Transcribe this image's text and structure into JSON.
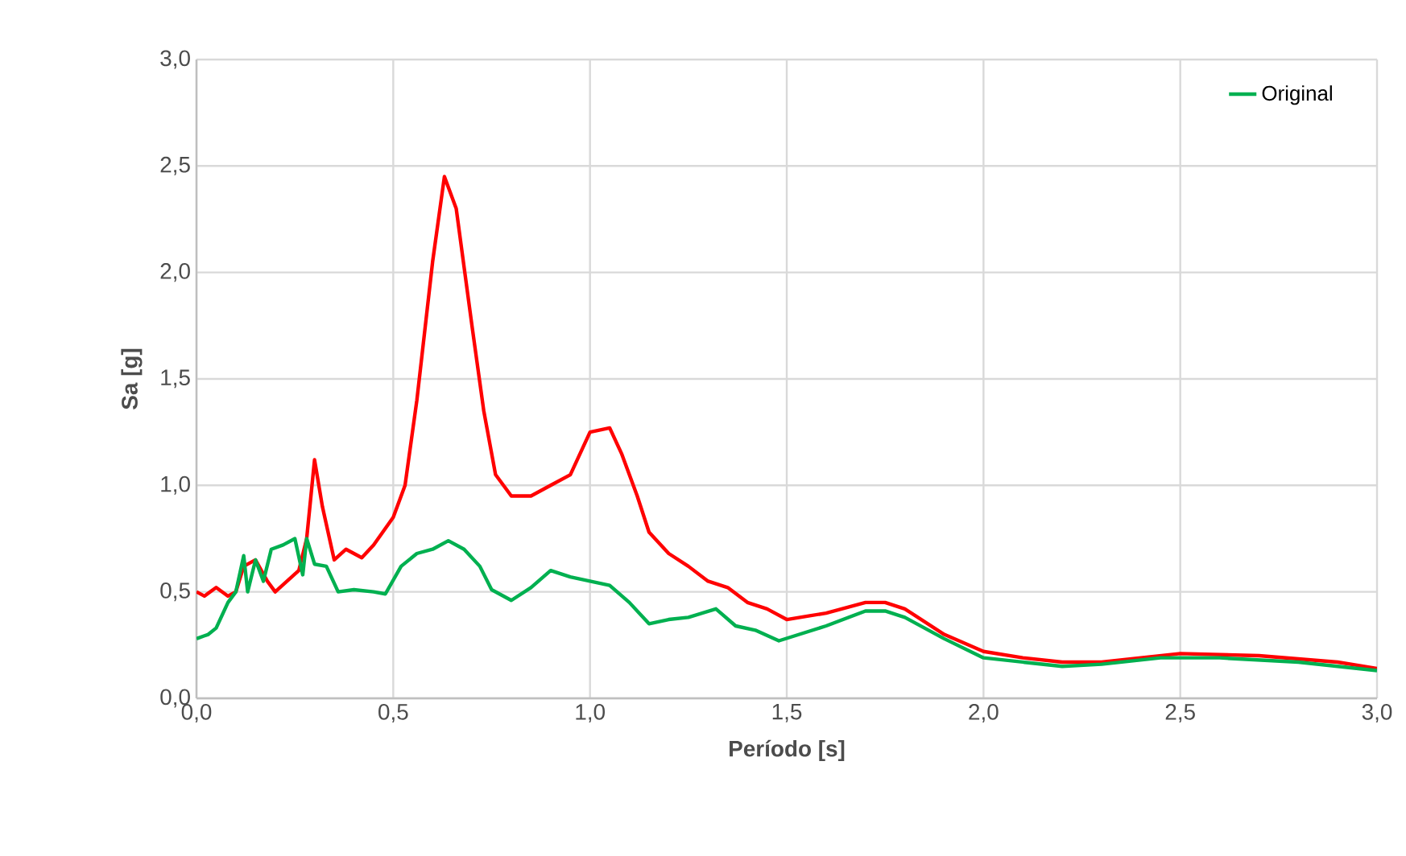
{
  "chart_data": {
    "type": "line",
    "xlabel": "Período [s]",
    "ylabel": "Sa [g]",
    "xlim": [
      0,
      3
    ],
    "ylim": [
      0,
      3
    ],
    "xticks": [
      {
        "value": 0,
        "label": "0,0"
      },
      {
        "value": 0.5,
        "label": "0,5"
      },
      {
        "value": 1,
        "label": "1,0"
      },
      {
        "value": 1.5,
        "label": "1,5"
      },
      {
        "value": 2,
        "label": "2,0"
      },
      {
        "value": 2.5,
        "label": "2,5"
      },
      {
        "value": 3,
        "label": "3,0"
      }
    ],
    "yticks": [
      {
        "value": 0,
        "label": "0,0"
      },
      {
        "value": 0.5,
        "label": "0,5"
      },
      {
        "value": 1,
        "label": "1,0"
      },
      {
        "value": 1.5,
        "label": "1,5"
      },
      {
        "value": 2,
        "label": "2,0"
      },
      {
        "value": 2.5,
        "label": "2,5"
      },
      {
        "value": 3,
        "label": "3,0"
      }
    ],
    "grid": true,
    "legend": "top right",
    "marker": "none",
    "line_style": "solid",
    "series": [
      {
        "color": "#ff0000",
        "x": [
          0.0,
          0.02,
          0.05,
          0.08,
          0.1,
          0.12,
          0.15,
          0.18,
          0.2,
          0.23,
          0.26,
          0.28,
          0.3,
          0.32,
          0.35,
          0.38,
          0.42,
          0.45,
          0.5,
          0.53,
          0.56,
          0.6,
          0.63,
          0.66,
          0.7,
          0.73,
          0.76,
          0.8,
          0.85,
          0.9,
          0.95,
          1.0,
          1.05,
          1.08,
          1.12,
          1.15,
          1.2,
          1.25,
          1.3,
          1.35,
          1.4,
          1.45,
          1.5,
          1.6,
          1.7,
          1.75,
          1.8,
          1.9,
          2.0,
          2.1,
          2.2,
          2.3,
          2.4,
          2.5,
          2.7,
          2.9,
          3.0
        ],
        "values": [
          0.5,
          0.48,
          0.52,
          0.48,
          0.5,
          0.62,
          0.65,
          0.55,
          0.5,
          0.55,
          0.6,
          0.75,
          1.12,
          0.9,
          0.65,
          0.7,
          0.66,
          0.72,
          0.85,
          1.0,
          1.4,
          2.05,
          2.45,
          2.3,
          1.75,
          1.35,
          1.05,
          0.95,
          0.95,
          1.0,
          1.05,
          1.25,
          1.27,
          1.15,
          0.95,
          0.78,
          0.68,
          0.62,
          0.55,
          0.52,
          0.45,
          0.42,
          0.37,
          0.4,
          0.45,
          0.45,
          0.42,
          0.3,
          0.22,
          0.19,
          0.17,
          0.17,
          0.19,
          0.21,
          0.2,
          0.17,
          0.14
        ]
      },
      {
        "name": "Original",
        "color": "#00b050",
        "x": [
          0.0,
          0.03,
          0.05,
          0.08,
          0.1,
          0.12,
          0.13,
          0.15,
          0.17,
          0.19,
          0.22,
          0.25,
          0.27,
          0.28,
          0.3,
          0.33,
          0.36,
          0.4,
          0.45,
          0.48,
          0.52,
          0.56,
          0.6,
          0.64,
          0.68,
          0.72,
          0.75,
          0.8,
          0.85,
          0.9,
          0.95,
          1.0,
          1.05,
          1.1,
          1.15,
          1.2,
          1.25,
          1.32,
          1.37,
          1.42,
          1.48,
          1.6,
          1.7,
          1.75,
          1.8,
          1.9,
          2.0,
          2.1,
          2.2,
          2.3,
          2.45,
          2.6,
          2.8,
          3.0
        ],
        "values": [
          0.28,
          0.3,
          0.33,
          0.45,
          0.5,
          0.67,
          0.5,
          0.65,
          0.55,
          0.7,
          0.72,
          0.75,
          0.58,
          0.75,
          0.63,
          0.62,
          0.5,
          0.51,
          0.5,
          0.49,
          0.62,
          0.68,
          0.7,
          0.74,
          0.7,
          0.62,
          0.51,
          0.46,
          0.52,
          0.6,
          0.57,
          0.55,
          0.53,
          0.45,
          0.35,
          0.37,
          0.38,
          0.42,
          0.34,
          0.32,
          0.27,
          0.34,
          0.41,
          0.41,
          0.38,
          0.28,
          0.19,
          0.17,
          0.15,
          0.16,
          0.19,
          0.19,
          0.17,
          0.13
        ]
      }
    ]
  }
}
